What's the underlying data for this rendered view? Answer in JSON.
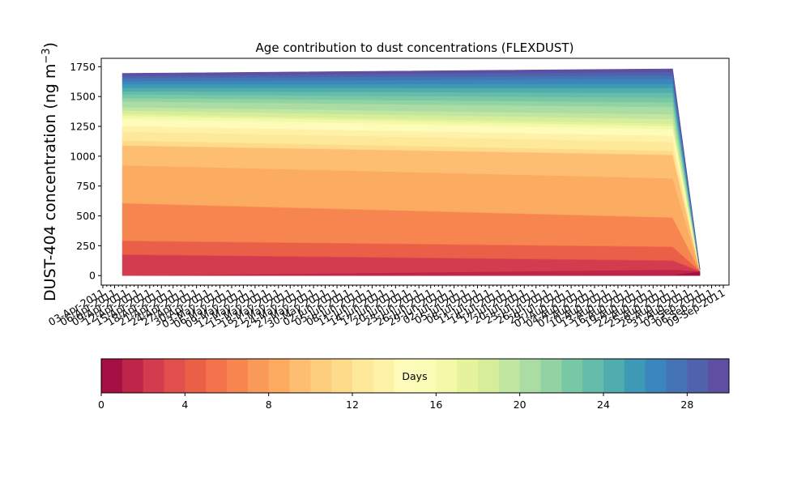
{
  "chart_data": {
    "type": "area",
    "title": "Age contribution to dust concentrations (FLEXDUST)",
    "ylabel_main": "DUST-404 concentration (ng m",
    "ylabel_sup": "−3",
    "ylabel_close": ")",
    "xlabel": "",
    "yticks": [
      0,
      250,
      500,
      750,
      1000,
      1250,
      1500,
      1750
    ],
    "ylim": [
      -80,
      1820
    ],
    "x_tick_labels": [
      "03-Apr-2011",
      "06-Apr-2011",
      "09-Apr-2011",
      "12-Apr-2011",
      "15-Apr-2011",
      "18-Apr-2011",
      "21-Apr-2011",
      "24-Apr-2011",
      "27-Apr-2011",
      "30-Apr-2011",
      "03-May-2011",
      "06-May-2011",
      "09-May-2011",
      "12-May-2011",
      "15-May-2011",
      "18-May-2011",
      "21-May-2011",
      "24-May-2011",
      "27-May-2011",
      "30-May-2011",
      "02-Jun-2011",
      "05-Jun-2011",
      "08-Jun-2011",
      "11-Jun-2011",
      "14-Jun-2011",
      "17-Jun-2011",
      "20-Jun-2011",
      "23-Jun-2011",
      "26-Jun-2011",
      "29-Jun-2011",
      "02-Jul-2011",
      "05-Jul-2011",
      "08-Jul-2011",
      "11-Jul-2011",
      "14-Jul-2011",
      "17-Jul-2011",
      "20-Jul-2011",
      "23-Jul-2011",
      "26-Jul-2011",
      "29-Jul-2011",
      "01-Aug-2011",
      "04-Aug-2011",
      "07-Aug-2011",
      "10-Aug-2011",
      "13-Aug-2011",
      "16-Aug-2011",
      "19-Aug-2011",
      "22-Aug-2011",
      "25-Aug-2011",
      "28-Aug-2011",
      "31-Aug-2011",
      "03-Sep-2011",
      "06-Sep-2011",
      "09-Sep-2011"
    ],
    "x_dates": [
      "2011-04-08",
      "2011-08-27",
      "2011-09-03"
    ],
    "series_age_days": [
      0,
      1,
      2,
      3,
      4,
      5,
      6,
      7,
      8,
      9,
      10,
      11,
      12,
      13,
      14,
      15,
      16,
      17,
      18,
      19,
      20,
      21,
      22,
      23,
      24,
      25,
      26,
      27,
      28,
      29
    ],
    "values": [
      [
        0,
        5,
        35
      ],
      [
        0,
        45,
        2
      ],
      [
        175,
        75,
        2
      ],
      [
        5,
        5,
        0
      ],
      [
        110,
        110,
        1
      ],
      [
        5,
        5,
        0
      ],
      [
        310,
        240,
        1
      ],
      [
        5,
        5,
        0
      ],
      [
        315,
        325,
        0
      ],
      [
        165,
        195,
        0
      ],
      [
        2,
        5,
        0
      ],
      [
        40,
        30,
        0
      ],
      [
        75,
        75,
        0
      ],
      [
        48,
        52,
        0
      ],
      [
        35,
        30,
        0
      ],
      [
        25,
        25,
        0
      ],
      [
        25,
        25,
        0
      ],
      [
        15,
        20,
        0
      ],
      [
        28,
        40,
        1
      ],
      [
        29,
        40,
        1
      ],
      [
        48,
        60,
        1
      ],
      [
        28,
        40,
        1
      ],
      [
        30,
        40,
        1
      ],
      [
        26,
        40,
        1
      ],
      [
        29,
        40,
        1
      ],
      [
        30,
        35,
        1
      ],
      [
        28,
        40,
        1
      ],
      [
        24,
        30,
        1
      ],
      [
        19,
        30,
        1
      ],
      [
        20,
        25,
        1
      ]
    ],
    "colorbar": {
      "label": "Days",
      "range": [
        0,
        30
      ],
      "ticks": [
        0,
        4,
        8,
        12,
        16,
        20,
        24,
        28
      ],
      "colors": [
        "#a50f44",
        "#be2548",
        "#d33c4e",
        "#e04f4b",
        "#ea5f47",
        "#f2734b",
        "#f7854f",
        "#fa9a59",
        "#fcac61",
        "#fdbe71",
        "#fdcd7e",
        "#fedb8a",
        "#fee89a",
        "#fef2a8",
        "#fffcbb",
        "#fbfdb6",
        "#f3f9a9",
        "#e5f49c",
        "#d6ee9b",
        "#c1e6a0",
        "#aadca3",
        "#92d3a4",
        "#78c8a5",
        "#65bcaa",
        "#51acae",
        "#3e99b6",
        "#3b86bc",
        "#4574b4",
        "#5162ad",
        "#5e4fa2"
      ]
    }
  }
}
